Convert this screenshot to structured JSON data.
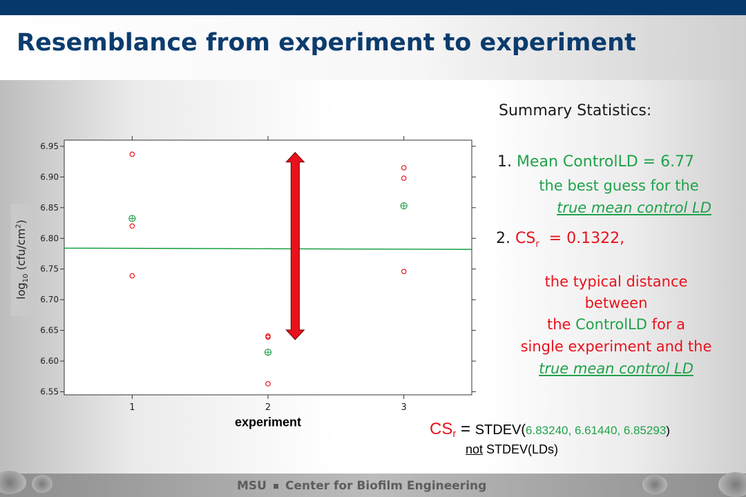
{
  "title": "Resemblance from experiment to experiment",
  "summary_heading": "Summary Statistics:",
  "stat1": {
    "number": "1.",
    "label": "Mean ControlLD = 6.77",
    "line2": "the best guess for the",
    "line3": "true mean control LD"
  },
  "stat2": {
    "number": "2.",
    "cs": "CS",
    "cs_sub": "r",
    "value": "  = 0.1322,",
    "line1": "the typical distance",
    "line2": "between",
    "line3_a": "the ",
    "line3_b": "ControlLD",
    "line3_c": " for a",
    "line4": "single experiment and the",
    "line5": "true mean control LD"
  },
  "formula": {
    "cs": "CS",
    "cs_sub": "r",
    "eq": " = ",
    "func": "STDEV(",
    "args": "6.83240, 6.61440, 6.85293",
    "close": ")",
    "not": "not",
    "alt": " STDEV(LDs)"
  },
  "footer": {
    "msu": "MSU",
    "center": "Center for Biofilm Engineering"
  },
  "axis": {
    "ylabel_base": "log",
    "ylabel_sub": "10",
    "ylabel_mid": " (cfu/cm",
    "ylabel_sup": "2",
    "ylabel_end": ")",
    "xlabel": "experiment"
  },
  "chart_data": {
    "type": "scatter",
    "xlabel": "experiment",
    "ylabel": "log10 (cfu/cm2)",
    "xlim": [
      0.5,
      3.5
    ],
    "ylim": [
      6.545,
      6.96
    ],
    "x_ticks": [
      1,
      2,
      3
    ],
    "y_ticks": [
      6.55,
      6.6,
      6.65,
      6.7,
      6.75,
      6.8,
      6.85,
      6.9,
      6.95
    ],
    "series": [
      {
        "marker": "open circle",
        "color": "#e8121c",
        "points": [
          [
            1,
            6.937
          ],
          [
            1,
            6.82
          ],
          [
            1,
            6.739
          ],
          [
            2,
            6.641
          ],
          [
            2,
            6.639
          ],
          [
            2,
            6.563
          ],
          [
            3,
            6.915
          ],
          [
            3,
            6.898
          ],
          [
            3,
            6.746
          ]
        ]
      },
      {
        "marker": "crossed circle",
        "color": "#1fa24a",
        "points": [
          [
            1,
            6.8324
          ],
          [
            2,
            6.6144
          ],
          [
            3,
            6.85293
          ]
        ]
      }
    ],
    "reference_line": {
      "y_start": 6.784,
      "y_end": 6.782,
      "color": "#1fa24a"
    },
    "double_arrow": {
      "x": 2.2,
      "y_top": 6.94,
      "y_bottom": 6.635,
      "color": "#e8121c"
    }
  }
}
